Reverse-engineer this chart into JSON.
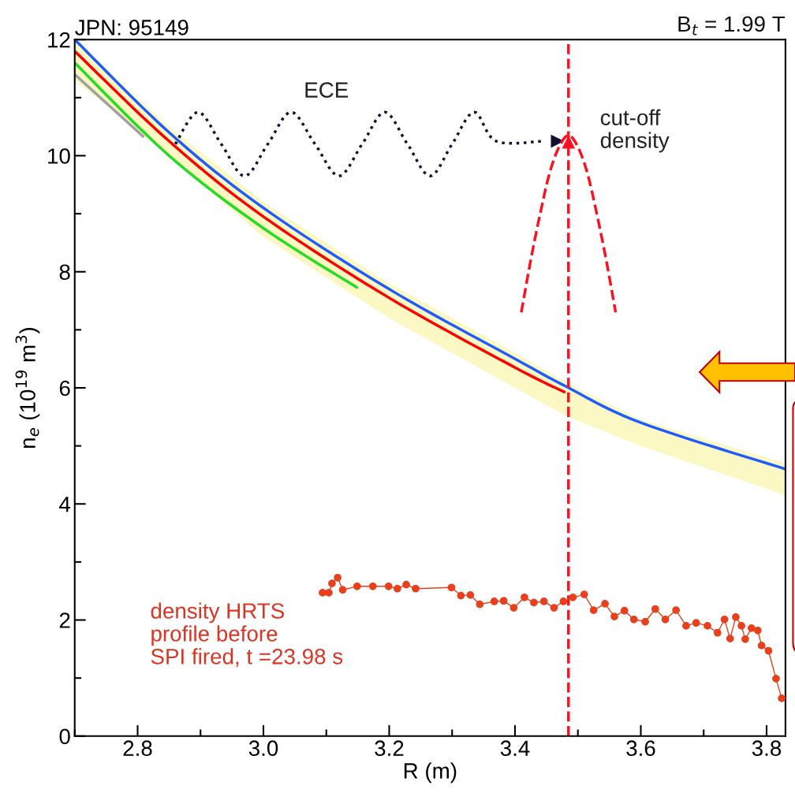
{
  "chart_data": {
    "type": "line",
    "title": "JPN: 95149",
    "xlabel": "R (m)",
    "ylabel": "n$_{e}$ (10$^{19}$ m$^{3}$)",
    "xlim": [
      2.7,
      3.83
    ],
    "ylim": [
      0,
      12
    ],
    "xticks": [
      {
        "value": 2.7,
        "label": null
      },
      2.8,
      {
        "value": 2.9,
        "label": null
      },
      "3.0",
      {
        "value": 3.1,
        "label": null
      },
      3.2,
      {
        "value": 3.3,
        "label": null
      },
      3.4,
      {
        "value": 3.5,
        "label": null
      },
      3.6,
      {
        "value": 3.7,
        "label": null
      },
      3.8
    ],
    "yticks": [
      0,
      {
        "value": 1,
        "label": null
      },
      2,
      {
        "value": 3,
        "label": null
      },
      4,
      {
        "value": 5,
        "label": null
      },
      6,
      {
        "value": 7,
        "label": null
      },
      8,
      {
        "value": 9,
        "label": null
      },
      10,
      {
        "value": 11,
        "label": null
      },
      12
    ],
    "grid": false,
    "ref_lines": [
      {
        "axis": "x",
        "value": 3.485,
        "color": "#ff1020",
        "line_style": "dashed"
      }
    ],
    "annotations": [
      "B$_{t}$ = 1.99 T",
      "ECE",
      "cut-off\ndensity",
      "density HRTS\nprofile before\nSPI fired, t =23.98 s"
    ],
    "series": [
      {
        "color": "#a0a0a0",
        "x": [
          2.7,
          2.81
        ],
        "values": [
          11.4,
          10.32
        ]
      },
      {
        "color": "#22dd22",
        "x": [
          2.7,
          2.85,
          3.0,
          3.15
        ],
        "values": [
          11.6,
          10.0,
          8.75,
          7.72
        ]
      },
      {
        "color": "#ff0000",
        "x": [
          2.7,
          2.85,
          3.0,
          3.2,
          3.4,
          3.48
        ],
        "values": [
          11.8,
          10.25,
          8.95,
          7.55,
          6.35,
          5.92
        ]
      },
      {
        "color": "#1f5cff",
        "x": [
          2.7,
          2.85,
          3.0,
          3.2,
          3.4,
          3.48,
          3.6,
          3.83
        ],
        "values": [
          12.0,
          10.4,
          9.1,
          7.7,
          6.5,
          6.03,
          5.4,
          4.6
        ],
        "lower": [
          11.3,
          10.0,
          8.6,
          7.2,
          6.0,
          5.52,
          5.0,
          4.15
        ],
        "upper": [
          12.0,
          10.5,
          9.2,
          7.8,
          6.6,
          6.1,
          5.45,
          4.7
        ]
      },
      {
        "color": "#101030",
        "line_style": "dotted",
        "x": [
          2.86,
          2.896,
          2.933,
          2.97,
          3.007,
          3.044,
          3.082,
          3.12,
          3.157,
          3.193,
          3.229,
          3.265,
          3.3,
          3.335,
          3.37,
          3.445
        ],
        "values": [
          10.2,
          10.75,
          10.2,
          9.65,
          10.2,
          10.75,
          10.2,
          9.65,
          10.2,
          10.75,
          10.2,
          9.65,
          10.2,
          10.75,
          10.25,
          10.25
        ]
      },
      {
        "color": "#ff1020",
        "line_style": "dashed",
        "x": [
          3.41,
          3.425,
          3.44,
          3.455,
          3.47,
          3.485,
          3.5,
          3.515,
          3.53,
          3.545,
          3.56
        ],
        "values": [
          7.3,
          8.2,
          9.0,
          9.7,
          10.15,
          10.35,
          10.15,
          9.7,
          9.0,
          8.2,
          7.3
        ]
      },
      {
        "color": "#e8401c",
        "marker": "circle",
        "x": [
          3.094,
          3.104,
          3.109,
          3.118,
          3.126,
          3.149,
          3.174,
          3.199,
          3.213,
          3.227,
          3.242,
          3.299,
          3.314,
          3.329,
          3.344,
          3.367,
          3.382,
          3.398,
          3.415,
          3.43,
          3.446,
          3.462,
          3.477,
          3.492,
          3.51,
          3.525,
          3.543,
          3.558,
          3.574,
          3.589,
          3.607,
          3.623,
          3.639,
          3.656,
          3.672,
          3.688,
          3.706,
          3.722,
          3.733,
          3.742,
          3.751,
          3.76,
          3.766,
          3.776,
          3.786,
          3.792,
          3.803,
          3.815,
          3.824
        ],
        "values": [
          2.47,
          2.47,
          2.63,
          2.73,
          2.52,
          2.58,
          2.58,
          2.58,
          2.54,
          2.61,
          2.54,
          2.56,
          2.42,
          2.43,
          2.27,
          2.32,
          2.33,
          2.21,
          2.39,
          2.3,
          2.32,
          2.21,
          2.32,
          2.39,
          2.44,
          2.17,
          2.28,
          2.06,
          2.16,
          2.01,
          1.97,
          2.19,
          2.01,
          2.17,
          1.9,
          1.95,
          1.9,
          1.78,
          2.01,
          1.68,
          2.05,
          1.9,
          1.67,
          1.86,
          1.82,
          1.56,
          1.47,
          0.99,
          0.65
        ]
      }
    ]
  }
}
